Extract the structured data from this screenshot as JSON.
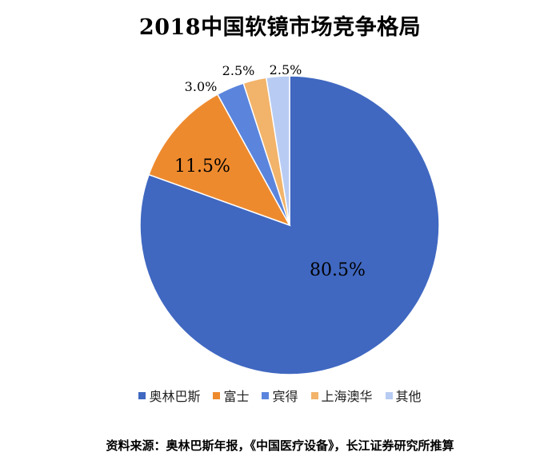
{
  "title": "2018中国软镜市场竞争格局",
  "source": "资料来源：奥林巴斯年报，《中国医疗设备》，长江证券研究所推算",
  "chart_data": {
    "type": "pie",
    "title": "2018中国软镜市场竞争格局",
    "start_angle_deg": 0,
    "direction": "clockwise",
    "legend_position": "bottom",
    "slices": [
      {
        "name": "奥林巴斯",
        "value": 80.5,
        "label": "80.5%",
        "color": "#4068C1"
      },
      {
        "name": "富士",
        "value": 11.5,
        "label": "11.5%",
        "color": "#EE8A2E"
      },
      {
        "name": "宾得",
        "value": 3.0,
        "label": "3.0%",
        "color": "#5B85DD"
      },
      {
        "name": "上海澳华",
        "value": 2.5,
        "label": "2.5%",
        "color": "#F2B36A"
      },
      {
        "name": "其他",
        "value": 2.5,
        "label": "2.5%",
        "color": "#B8CCF3"
      }
    ]
  }
}
